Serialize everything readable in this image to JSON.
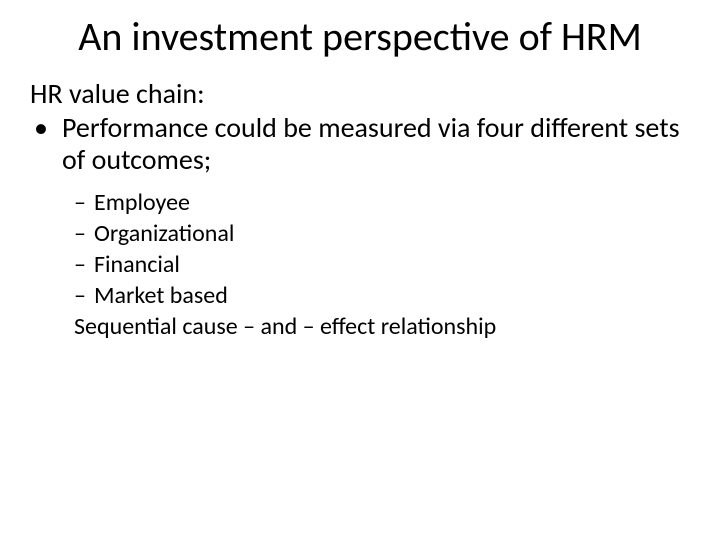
{
  "slide": {
    "title": "An investment perspective of HRM",
    "lead": "HR value chain:",
    "bullet_marker": "•",
    "bullet_text": "Performance could be measured via four different sets of outcomes;",
    "dash_marker": "–",
    "sub_items": [
      "Employee",
      "Organizational",
      "Financial",
      "Market based"
    ],
    "closing": "Sequential cause – and – effect relationship"
  },
  "style": {
    "background_color": "#ffffff",
    "text_color": "#000000",
    "title_fontsize": 40,
    "body_fontsize": 28,
    "sub_fontsize": 24,
    "font_family": "Calibri"
  }
}
